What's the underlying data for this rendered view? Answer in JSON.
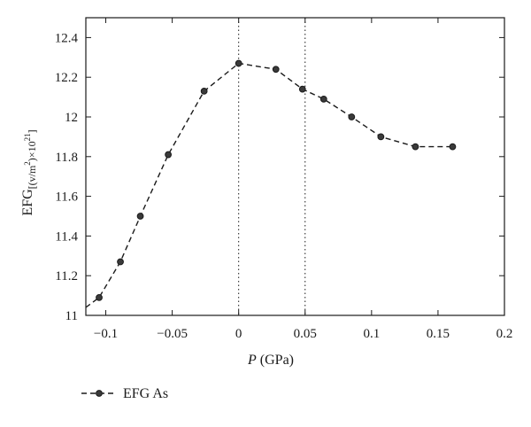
{
  "chart_data": {
    "type": "line",
    "title": "",
    "xlabel_var": "P",
    "xlabel_unit": " (GPa)",
    "ylabel_main": "EFG",
    "ylabel_sub": "[(v/m",
    "ylabel_sup1": "2",
    "ylabel_mid": ")×10",
    "ylabel_sup2": "21",
    "ylabel_end": "]",
    "xlim": [
      -0.115,
      0.2
    ],
    "ylim": [
      11.0,
      12.5
    ],
    "x_ticks": [
      -0.1,
      -0.05,
      0,
      0.05,
      0.1,
      0.15,
      0.2
    ],
    "x_tick_labels": [
      "−0.1",
      "−0.05",
      "0",
      "0.05",
      "0.1",
      "0.15",
      "0.2"
    ],
    "y_ticks": [
      11.0,
      11.2,
      11.4,
      11.6,
      11.8,
      12.0,
      12.2,
      12.4
    ],
    "y_tick_labels": [
      "11",
      "11.2",
      "11.4",
      "11.6",
      "11.8",
      "12",
      "12.2",
      "12.4"
    ],
    "vertical_dotted_lines_x": [
      0,
      0.05
    ],
    "grid": false,
    "legend_position": "bottom-left",
    "series": [
      {
        "name": "EFG As",
        "line_style": "dashed",
        "marker": "circle",
        "color": "#1a1a1a",
        "x": [
          -0.105,
          -0.089,
          -0.074,
          -0.053,
          -0.026,
          0.0,
          0.028,
          0.048,
          0.064,
          0.085,
          0.107,
          0.133,
          0.161
        ],
        "y": [
          11.09,
          11.27,
          11.5,
          11.81,
          12.13,
          12.27,
          12.24,
          12.14,
          12.09,
          12.0,
          11.9,
          11.85,
          11.85
        ],
        "leading_segment_start": [
          -0.115,
          11.04
        ]
      }
    ]
  }
}
